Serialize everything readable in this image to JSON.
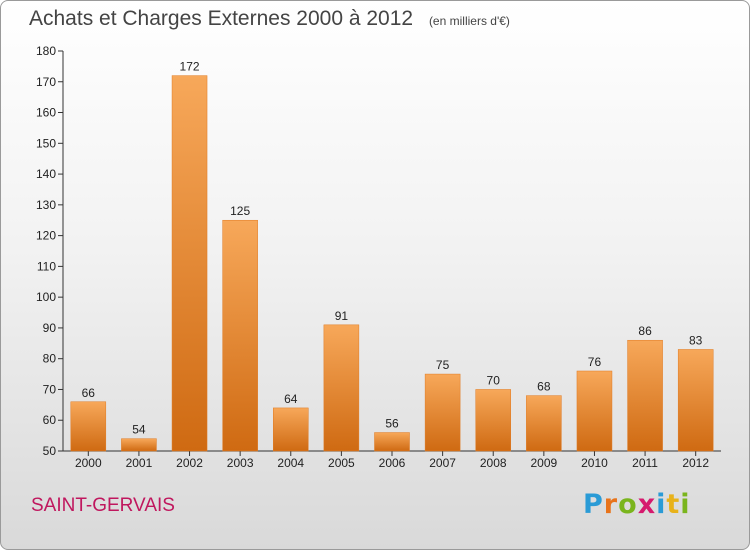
{
  "chart_data": {
    "type": "bar",
    "title": "Achats et Charges Externes 2000 à 2012",
    "subtitle": "(en milliers d'€)",
    "categories": [
      "2000",
      "2001",
      "2002",
      "2003",
      "2004",
      "2005",
      "2006",
      "2007",
      "2008",
      "2009",
      "2010",
      "2011",
      "2012"
    ],
    "values": [
      66,
      54,
      172,
      125,
      64,
      91,
      56,
      75,
      70,
      68,
      76,
      86,
      83
    ],
    "ylim": [
      50,
      180
    ],
    "yticks": [
      50,
      60,
      70,
      80,
      90,
      100,
      110,
      120,
      130,
      140,
      150,
      160,
      170,
      180
    ],
    "grid": false,
    "bar_color": "#f0872a"
  },
  "footer": {
    "commune": "SAINT-GERVAIS"
  },
  "logo": {
    "text": "Proxiti",
    "letters": [
      {
        "ch": "P",
        "color": "#2a9bd6"
      },
      {
        "ch": "r",
        "color": "#e8731a"
      },
      {
        "ch": "o",
        "color": "#7ab51d"
      },
      {
        "ch": "x",
        "color": "#d61a6e"
      },
      {
        "ch": "i",
        "color": "#2a9bd6"
      },
      {
        "ch": "t",
        "color": "#e8b21a"
      },
      {
        "ch": "i",
        "color": "#7ab51d"
      }
    ]
  }
}
